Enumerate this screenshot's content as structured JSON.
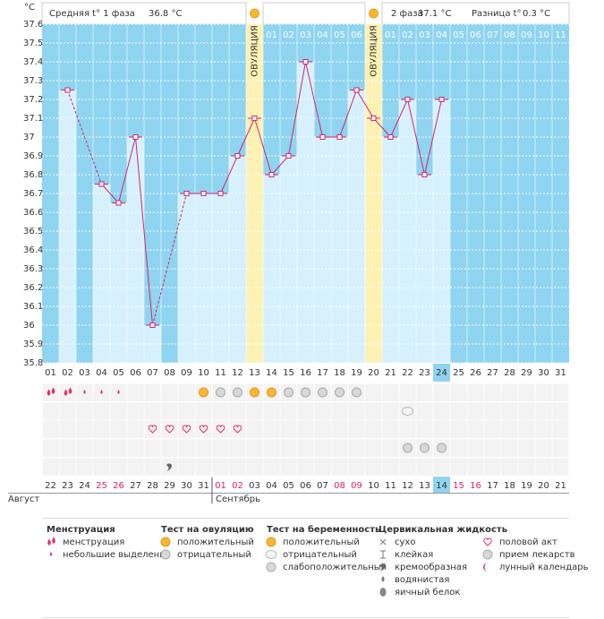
{
  "chart_data": {
    "type": "line",
    "y_unit": "°C",
    "header": {
      "phase1_label": "Средняя t° 1 фаза",
      "phase1_value": "36.8 °C",
      "phase2_label": "2 фаза",
      "phase2_value": "37.1 °C",
      "diff_label": "Разница t°",
      "diff_value": "0.3 °C"
    },
    "categories": [
      "01",
      "02",
      "03",
      "04",
      "05",
      "06",
      "07",
      "08",
      "09",
      "10",
      "11",
      "12",
      "13",
      "14",
      "15",
      "16",
      "17",
      "18",
      "19",
      "20",
      "21",
      "22",
      "23",
      "24",
      "25",
      "26",
      "27",
      "28",
      "29",
      "30",
      "31"
    ],
    "values": [
      null,
      37.25,
      null,
      36.75,
      36.65,
      37.0,
      36.0,
      null,
      36.7,
      36.7,
      36.7,
      36.9,
      37.1,
      36.8,
      36.9,
      37.4,
      37.0,
      37.0,
      37.25,
      37.1,
      37.0,
      37.2,
      36.8,
      37.2,
      null,
      null,
      null,
      null,
      null,
      null,
      null
    ],
    "color": "#d6246e",
    "phase_days": [
      null,
      null,
      null,
      null,
      null,
      null,
      null,
      null,
      null,
      null,
      null,
      null,
      null,
      "01",
      "02",
      "03",
      "04",
      "05",
      "06",
      null,
      "01",
      "02",
      "03",
      "04",
      "05",
      "06",
      "07",
      "08",
      "09",
      "10",
      "11"
    ],
    "ovulation": {
      "label": "ОВУЛЯЦИЯ",
      "days": [
        13,
        20
      ]
    },
    "ylim": [
      35.8,
      37.6
    ],
    "yticks": [
      35.8,
      35.9,
      36,
      36.1,
      36.2,
      36.3,
      36.4,
      36.5,
      36.6,
      36.7,
      36.8,
      36.9,
      37,
      37.1,
      37.2,
      37.3,
      37.4,
      37.5,
      37.6
    ],
    "grid": true,
    "highlight_day": 24,
    "dates": [
      {
        "label": "22",
        "weekend": false
      },
      {
        "label": "23",
        "weekend": false
      },
      {
        "label": "24",
        "weekend": false
      },
      {
        "label": "25",
        "weekend": true
      },
      {
        "label": "26",
        "weekend": true
      },
      {
        "label": "27",
        "weekend": false
      },
      {
        "label": "28",
        "weekend": false
      },
      {
        "label": "29",
        "weekend": false
      },
      {
        "label": "30",
        "weekend": false
      },
      {
        "label": "31",
        "weekend": false
      },
      {
        "label": "01",
        "weekend": true
      },
      {
        "label": "02",
        "weekend": true
      },
      {
        "label": "03",
        "weekend": false
      },
      {
        "label": "04",
        "weekend": false
      },
      {
        "label": "05",
        "weekend": false
      },
      {
        "label": "06",
        "weekend": false
      },
      {
        "label": "07",
        "weekend": false
      },
      {
        "label": "08",
        "weekend": true
      },
      {
        "label": "09",
        "weekend": true
      },
      {
        "label": "10",
        "weekend": false
      },
      {
        "label": "11",
        "weekend": false
      },
      {
        "label": "12",
        "weekend": false
      },
      {
        "label": "13",
        "weekend": false
      },
      {
        "label": "14",
        "weekend": false
      },
      {
        "label": "15",
        "weekend": true
      },
      {
        "label": "16",
        "weekend": true
      },
      {
        "label": "17",
        "weekend": false
      },
      {
        "label": "18",
        "weekend": false
      },
      {
        "label": "19",
        "weekend": false
      },
      {
        "label": "20",
        "weekend": false
      },
      {
        "label": "21",
        "weekend": false
      }
    ],
    "months": [
      {
        "label": "Август",
        "start_day": 1
      },
      {
        "label": "Сентябрь",
        "start_day": 11
      }
    ],
    "legend": {
      "groups": [
        {
          "title": "Менструация",
          "items": [
            {
              "label": "менструация",
              "days": [
                1,
                2
              ]
            },
            {
              "label": "небольшие выделения",
              "days": [
                3,
                4,
                5
              ]
            }
          ]
        },
        {
          "title": "Тест на овуляцию",
          "items": [
            {
              "label": "положительный",
              "days": [
                10,
                13,
                14
              ]
            },
            {
              "label": "отрицательный",
              "days": [
                11,
                12,
                15,
                16,
                17,
                18,
                19
              ]
            }
          ]
        },
        {
          "title": "Тест на беременность",
          "items": [
            {
              "label": "положительный"
            },
            {
              "label": "отрицательный",
              "days": [
                22
              ]
            },
            {
              "label": "слабоположительный"
            }
          ]
        },
        {
          "title": "Цервикальная жидкость",
          "items": [
            {
              "label": "сухо"
            },
            {
              "label": "клейкая"
            },
            {
              "label": "кремообразная",
              "days": [
                8
              ]
            },
            {
              "label": "водянистая"
            },
            {
              "label": "яичный белок"
            }
          ]
        },
        {
          "items": [
            {
              "label": "половой акт",
              "days": [
                7,
                8,
                9,
                10,
                11,
                12
              ]
            },
            {
              "label": "прием лекарств",
              "days": [
                22,
                23,
                24
              ]
            },
            {
              "label": "лунный календарь"
            }
          ]
        }
      ]
    }
  }
}
